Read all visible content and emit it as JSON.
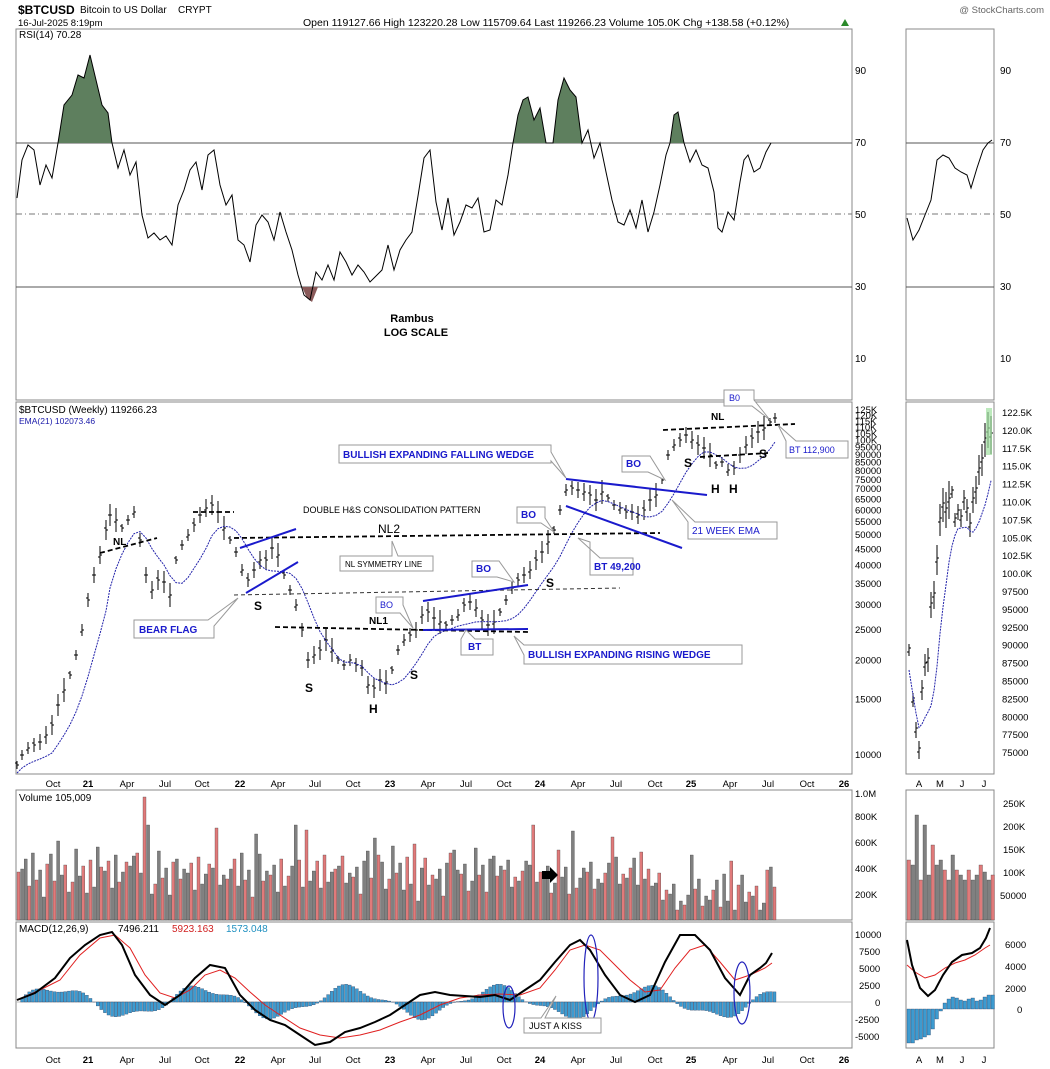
{
  "header": {
    "symbol": "$BTCUSD",
    "name": "Bitcoin to US Dollar",
    "exchange": "CRYPT",
    "date": "16-Jul-2025 8:19pm",
    "ohlc": "Open 119127.66  High 123220.28  Low 115709.64  Last 119266.23  Volume 105.0K  Chg +138.58 (+0.12%)",
    "credit": "@ StockCharts.com"
  },
  "rsi_panel": {
    "label": "RSI(14) 70.28",
    "ticks": [
      "90",
      "70",
      "50",
      "30",
      "10"
    ],
    "note_line1": "Rambus",
    "note_line2": "LOG SCALE"
  },
  "price_panel": {
    "label": "$BTCUSD (Weekly) 119266.23",
    "ema_label": "EMA(21) 102073.46",
    "right_ticks": [
      "125K",
      "120K",
      "115K",
      "110K",
      "105K",
      "100K",
      "95000",
      "90000",
      "85000",
      "80000",
      "75000",
      "70000",
      "65000",
      "60000",
      "55000",
      "50000",
      "45000",
      "40000",
      "35000",
      "30000",
      "25000",
      "20000",
      "15000",
      "10000"
    ],
    "daily_ticks": [
      "122.5K",
      "120.0K",
      "117.5K",
      "115.0K",
      "112.5K",
      "110.0K",
      "107.5K",
      "105.0K",
      "102.5K",
      "100.0K",
      "97500",
      "95000",
      "92500",
      "90000",
      "87500",
      "85000",
      "82500",
      "80000",
      "77500",
      "75000"
    ]
  },
  "annotations": {
    "double_hs": "DOUBLE H&S CONSOLIDATION PATTERN",
    "nl2": "NL2",
    "nl1": "NL1",
    "nl": "NL",
    "nl_top": "NL",
    "symmetry": "NL SYMMETRY LINE",
    "bear_flag": "BEAR FLAG",
    "wedge_falling": "BULLISH EXPANDING FALLING WEDGE",
    "wedge_rising": "BULLISH EXPANDING RISING WEDGE",
    "bo1": "BO",
    "bo2": "BO",
    "bo3": "BO",
    "bo4": "BO",
    "bo5": "B0",
    "bt1": "BT",
    "bt2": "BT 49,200",
    "bt3": "BT 112,900",
    "ema21": "21 WEEK EMA",
    "s1": "S",
    "s2": "S",
    "s3": "S",
    "s4": "S",
    "s5": "S",
    "s6": "S",
    "h1": "H",
    "h2": "H",
    "h3": "H",
    "just_a_kiss": "JUST A KISS"
  },
  "volume_panel": {
    "label": "Volume 105,009",
    "ticks": [
      "1.0M",
      "800K",
      "600K",
      "400K",
      "200K"
    ],
    "daily_ticks": [
      "250K",
      "200K",
      "150K",
      "100K",
      "50000"
    ]
  },
  "macd_panel": {
    "label_prefix": "MACD(12,26,9)",
    "macd_value": "7496.211",
    "signal_value": "5923.163",
    "hist_value": "1573.048",
    "ticks": [
      "10000",
      "7500",
      "5000",
      "2500",
      "0",
      "-2500",
      "-5000"
    ],
    "daily_ticks": [
      "6000",
      "4000",
      "2000",
      "0"
    ]
  },
  "x_axis": {
    "labels": [
      "Oct",
      "21",
      "Apr",
      "Jul",
      "Oct",
      "22",
      "Apr",
      "Jul",
      "Oct",
      "23",
      "Apr",
      "Jul",
      "Oct",
      "24",
      "Apr",
      "Jul",
      "Oct",
      "25",
      "Apr",
      "Jul",
      "Oct",
      "26"
    ],
    "daily_labels": [
      "A",
      "M",
      "J",
      "J"
    ]
  },
  "colors": {
    "up_volume": "#e07a7a",
    "down_volume": "#808080",
    "rsi_fill": "#5e7f5e",
    "annotation_blue": "#1a1acc",
    "macd_hist": "#3d9bd0",
    "signal": "#e02020",
    "ema": "#2222aa"
  },
  "chart_data": [
    {
      "type": "line",
      "title": "RSI(14) 70.28",
      "ylim": [
        0,
        100
      ],
      "ticks": [
        90,
        70,
        50,
        30,
        10
      ],
      "x": [
        "Oct 2020",
        "Jan 2021",
        "Apr 2021",
        "Jul 2021",
        "Oct 2021",
        "Jan 2022",
        "Apr 2022",
        "Jul 2022",
        "Oct 2022",
        "Jan 2023",
        "Apr 2023",
        "Jul 2023",
        "Oct 2023",
        "Jan 2024",
        "Apr 2024",
        "Jul 2024",
        "Oct 2024",
        "Jan 2025",
        "Apr 2025",
        "Jul 2025"
      ],
      "series": [
        {
          "name": "RSI(14)",
          "values": [
            60,
            80,
            75,
            42,
            68,
            45,
            50,
            28,
            36,
            48,
            60,
            55,
            60,
            82,
            75,
            48,
            55,
            60,
            45,
            70
          ]
        }
      ]
    },
    {
      "type": "line",
      "title": "$BTCUSD (Weekly) 119266.23",
      "scale": "log",
      "ylim": [
        9000,
        128000
      ],
      "x": [
        "Oct 2020",
        "Jan 2021",
        "Apr 2021",
        "Jul 2021",
        "Oct 2021",
        "Jan 2022",
        "Apr 2022",
        "Jul 2022",
        "Oct 2022",
        "Jan 2023",
        "Apr 2023",
        "Jul 2023",
        "Oct 2023",
        "Jan 2024",
        "Apr 2024",
        "Jul 2024",
        "Oct 2024",
        "Jan 2025",
        "Apr 2025",
        "Jul 2025"
      ],
      "series": [
        {
          "name": "$BTCUSD",
          "values": [
            10500,
            33000,
            58000,
            33000,
            61000,
            43000,
            40000,
            20000,
            19500,
            17000,
            28000,
            30000,
            28000,
            42000,
            70000,
            64000,
            62000,
            100000,
            83000,
            119266
          ]
        },
        {
          "name": "EMA(21)",
          "values": [
            9500,
            20000,
            45000,
            42000,
            50000,
            50000,
            42000,
            30000,
            21000,
            19000,
            23000,
            28000,
            28000,
            36000,
            55000,
            62000,
            62000,
            85000,
            90000,
            102073
          ]
        }
      ]
    },
    {
      "type": "bar",
      "title": "Volume 105,009",
      "ylim": [
        0,
        1000000
      ],
      "x": [
        "Oct 2020",
        "Jan 2021",
        "Apr 2021",
        "Jul 2021",
        "Oct 2021",
        "Jan 2022",
        "Apr 2022",
        "Jul 2022",
        "Oct 2022",
        "Jan 2023",
        "Apr 2023",
        "Jul 2023",
        "Oct 2023",
        "Jan 2024",
        "Apr 2024",
        "Jul 2024",
        "Oct 2024",
        "Jan 2025",
        "Apr 2025",
        "Jul 2025"
      ],
      "values": [
        300000,
        500000,
        550000,
        350000,
        400000,
        300000,
        350000,
        500000,
        450000,
        400000,
        300000,
        200000,
        250000,
        350000,
        300000,
        250000,
        400000,
        350000,
        200000,
        105009
      ]
    },
    {
      "type": "line",
      "title": "MACD(12,26,9) 7496.211, 5923.163, 1573.048",
      "ylim": [
        -6500,
        11000
      ],
      "x": [
        "Oct 2020",
        "Jan 2021",
        "Apr 2021",
        "Jul 2021",
        "Oct 2021",
        "Jan 2022",
        "Apr 2022",
        "Jul 2022",
        "Oct 2022",
        "Jan 2023",
        "Apr 2023",
        "Jul 2023",
        "Oct 2023",
        "Jan 2024",
        "Apr 2024",
        "Jul 2024",
        "Oct 2024",
        "Jan 2025",
        "Apr 2025",
        "Jul 2025"
      ],
      "series": [
        {
          "name": "MACD",
          "values": [
            0,
            4000,
            10000,
            -500,
            5500,
            2500,
            -1000,
            -5500,
            -4000,
            -3500,
            1500,
            1000,
            500,
            3500,
            9000,
            500,
            2500,
            10000,
            -1000,
            7496
          ]
        },
        {
          "name": "Signal",
          "values": [
            0,
            2000,
            9000,
            1000,
            4000,
            3000,
            0,
            -4000,
            -4500,
            -4000,
            0,
            1000,
            500,
            2500,
            8000,
            2000,
            1500,
            9000,
            1000,
            5923
          ]
        },
        {
          "name": "Histogram",
          "values": [
            0,
            2000,
            1000,
            -1500,
            1500,
            -500,
            -1000,
            -1500,
            500,
            500,
            1500,
            0,
            0,
            1000,
            1000,
            -1500,
            1000,
            1000,
            -2000,
            1573
          ]
        }
      ]
    }
  ]
}
